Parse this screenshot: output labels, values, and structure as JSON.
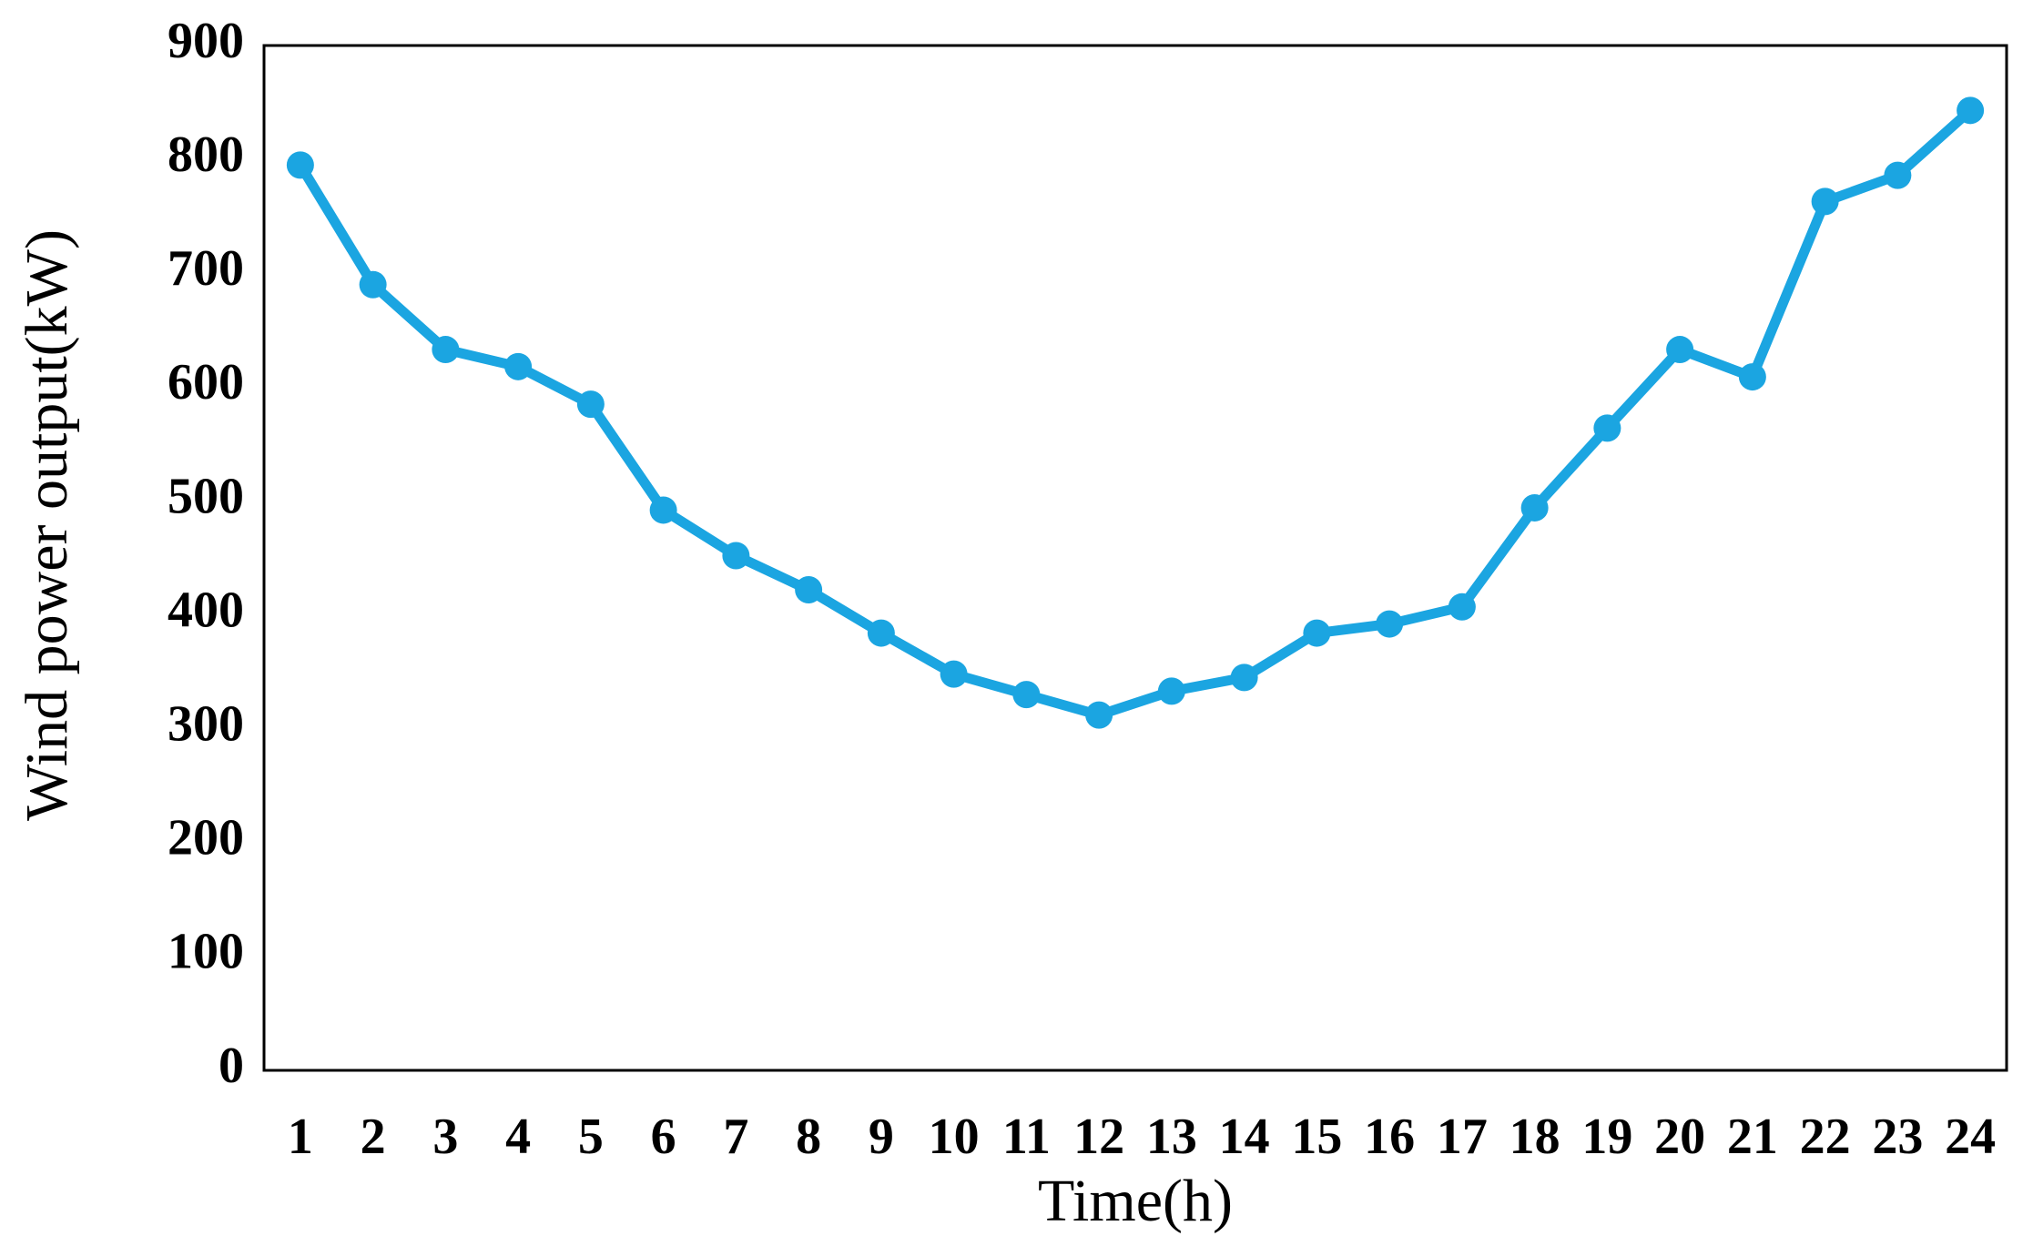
{
  "chart_data": {
    "type": "line",
    "x_label": "Time(h)",
    "y_label": "Wind power output(kW)",
    "categories": [
      1,
      2,
      3,
      4,
      5,
      6,
      7,
      8,
      9,
      10,
      11,
      12,
      13,
      14,
      15,
      16,
      17,
      18,
      19,
      20,
      21,
      22,
      23,
      24
    ],
    "values": [
      795,
      690,
      633,
      618,
      585,
      492,
      452,
      422,
      384,
      348,
      330,
      312,
      333,
      345,
      384,
      392,
      407,
      494,
      564,
      633,
      609,
      763,
      786,
      843
    ],
    "color": "#1ba5e1",
    "ylim": [
      0,
      900
    ],
    "yticks": [
      0,
      100,
      200,
      300,
      400,
      500,
      600,
      700,
      800,
      900
    ],
    "grid": false
  }
}
